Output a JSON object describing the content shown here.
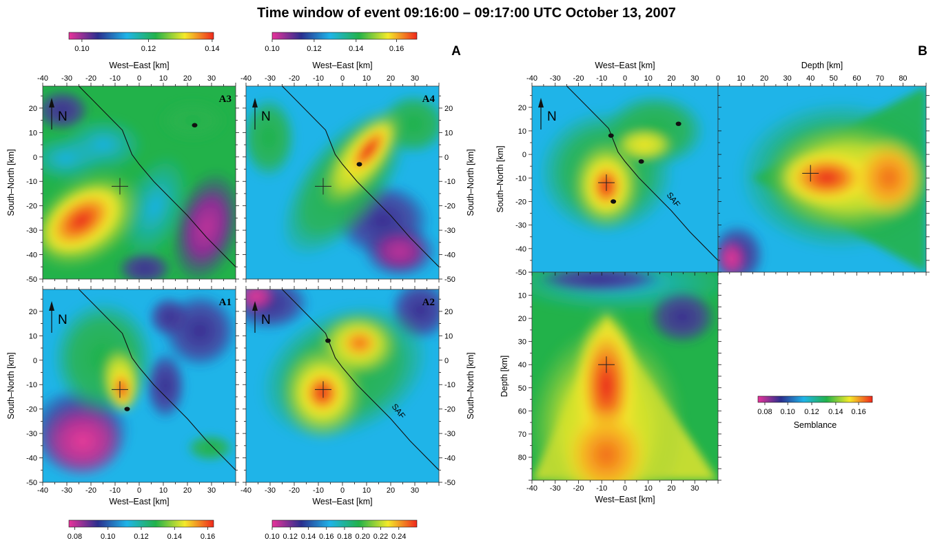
{
  "chart_data": {
    "type": "heatmap",
    "title": "Time window of event 09:16:00 – 09:17:00 UTC October 13, 2007",
    "figure_labels": [
      "A",
      "B"
    ],
    "north_label": "N",
    "fault_label": "SAF",
    "colormap": [
      "#e8339a",
      "#2b2f8e",
      "#1fb4e8",
      "#22b24a",
      "#f4ea2a",
      "#f0281c"
    ],
    "epicenter": {
      "x": -8,
      "y": -12
    },
    "fault_trace": [
      [
        -25,
        29
      ],
      [
        -18,
        22
      ],
      [
        -11,
        15
      ],
      [
        -7,
        11
      ],
      [
        -5,
        6
      ],
      [
        -3,
        1
      ],
      [
        0,
        -3
      ],
      [
        6,
        -10
      ],
      [
        12,
        -16
      ],
      [
        20,
        -24
      ],
      [
        28,
        -33
      ],
      [
        40,
        -45
      ]
    ],
    "aftershocks": [
      {
        "x": 23,
        "y": 13
      },
      {
        "x": -6,
        "y": 8
      },
      {
        "x": 7,
        "y": -3
      },
      {
        "x": -5,
        "y": -20
      }
    ],
    "panels": [
      {
        "id": "A3",
        "label": "A3",
        "xlabel": "West–East [km]",
        "ylabel": "South–North [km]",
        "x_ticks": [
          "-40",
          "-30",
          "-20",
          "-10",
          "0",
          "10",
          "20",
          "30"
        ],
        "y_ticks": [
          "20",
          "10",
          "0",
          "-10",
          "-20",
          "-30",
          "-40",
          "-50"
        ],
        "colorbar": {
          "ticks": [
            "0.10",
            "0.12",
            "0.14"
          ]
        }
      },
      {
        "id": "A4",
        "label": "A4",
        "xlabel": "West–East [km]",
        "ylabel": "South–North [km]",
        "x_ticks": [
          "-40",
          "-30",
          "-20",
          "-10",
          "0",
          "10",
          "20",
          "30"
        ],
        "y_ticks": [
          "20",
          "10",
          "0",
          "-10",
          "-20",
          "-30",
          "-40",
          "-50"
        ],
        "colorbar": {
          "ticks": [
            "0.10",
            "0.12",
            "0.14",
            "0.16"
          ]
        }
      },
      {
        "id": "A1",
        "label": "A1",
        "xlabel": "West–East [km]",
        "ylabel": "South–North [km]",
        "x_ticks": [
          "-40",
          "-30",
          "-20",
          "-10",
          "0",
          "10",
          "20",
          "30"
        ],
        "y_ticks": [
          "20",
          "10",
          "0",
          "-10",
          "-20",
          "-30",
          "-40",
          "-50"
        ],
        "colorbar": {
          "ticks": [
            "0.08",
            "0.10",
            "0.12",
            "0.14",
            "0.16"
          ]
        }
      },
      {
        "id": "A2",
        "label": "A2",
        "xlabel": "West–East [km]",
        "ylabel": "South–North [km]",
        "x_ticks": [
          "-40",
          "-30",
          "-20",
          "-10",
          "0",
          "10",
          "20",
          "30"
        ],
        "y_ticks": [
          "20",
          "10",
          "0",
          "-10",
          "-20",
          "-30",
          "-40",
          "-50"
        ],
        "colorbar": {
          "ticks": [
            "0.10",
            "0.12",
            "0.14",
            "0.16",
            "0.18",
            "0.20",
            "0.22",
            "0.24"
          ]
        }
      },
      {
        "id": "B_map",
        "xlabel": "West–East [km]",
        "ylabel": "South–North [km]",
        "x_ticks": [
          "-40",
          "-30",
          "-20",
          "-10",
          "0",
          "10",
          "20",
          "30"
        ],
        "y_ticks": [
          "20",
          "10",
          "0",
          "-10",
          "-20",
          "-30",
          "-40",
          "-50"
        ]
      },
      {
        "id": "B_xdepth",
        "xlabel": "Depth [km]",
        "x_ticks": [
          "0",
          "10",
          "20",
          "30",
          "40",
          "50",
          "60",
          "70",
          "80"
        ]
      },
      {
        "id": "B_depth",
        "xlabel": "West–East [km]",
        "ylabel": "Depth [km]",
        "x_ticks": [
          "-40",
          "-30",
          "-20",
          "-10",
          "0",
          "10",
          "20",
          "30"
        ],
        "y_ticks": [
          "10",
          "20",
          "30",
          "40",
          "50",
          "60",
          "70",
          "80"
        ]
      }
    ],
    "b_colorbar": {
      "ticks": [
        "0.08",
        "0.10",
        "0.12",
        "0.14",
        "0.16"
      ],
      "label": "Semblance"
    }
  }
}
